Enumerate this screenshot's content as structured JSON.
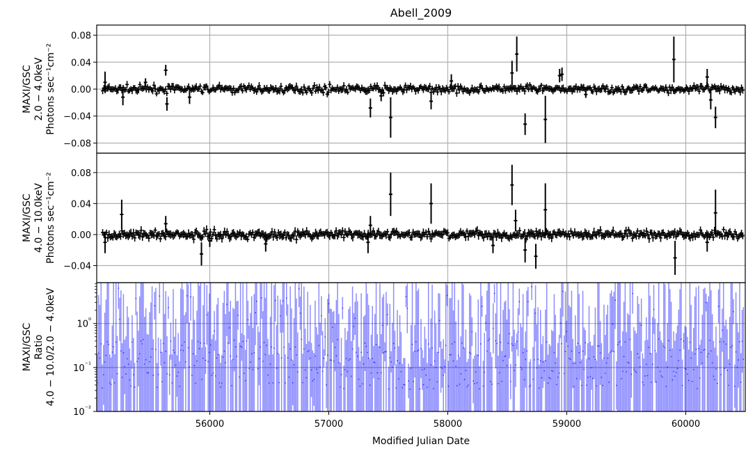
{
  "chart_data": {
    "type": "scatter",
    "title": "Abell_2009",
    "xlabel": "Modified Julian Date",
    "xlim": [
      55050,
      60500
    ],
    "xticks": [
      56000,
      57000,
      58000,
      59000,
      60000
    ],
    "shared_x": true,
    "grid": true,
    "panels": [
      {
        "ylabel_lines": [
          "MAXI/GSC",
          "2.0 − 4.0keV",
          "Photons sec⁻¹cm⁻²"
        ],
        "yscale": "linear",
        "ylim": [
          -0.095,
          0.095
        ],
        "yticks": [
          -0.08,
          -0.04,
          0.0,
          0.04,
          0.08
        ],
        "ytick_labels": [
          "−0.08",
          "−0.04",
          "0.00",
          "0.04",
          "0.08"
        ],
        "color": "#000000",
        "series": [
          {
            "style": "errorbar",
            "points": [
              {
                "x": 55120,
                "y": 0.01,
                "err": 0.016
              },
              {
                "x": 55270,
                "y": -0.012,
                "err": 0.012
              },
              {
                "x": 55460,
                "y": 0.01,
                "err": 0.006
              },
              {
                "x": 55630,
                "y": 0.028,
                "err": 0.008
              },
              {
                "x": 55640,
                "y": -0.022,
                "err": 0.01
              },
              {
                "x": 55830,
                "y": -0.012,
                "err": 0.01
              },
              {
                "x": 57350,
                "y": -0.028,
                "err": 0.014
              },
              {
                "x": 57440,
                "y": -0.01,
                "err": 0.008
              },
              {
                "x": 57520,
                "y": -0.042,
                "err": 0.03
              },
              {
                "x": 57860,
                "y": -0.018,
                "err": 0.012
              },
              {
                "x": 58030,
                "y": 0.012,
                "err": 0.01
              },
              {
                "x": 58540,
                "y": 0.024,
                "err": 0.018
              },
              {
                "x": 58580,
                "y": 0.052,
                "err": 0.026
              },
              {
                "x": 58650,
                "y": -0.052,
                "err": 0.016
              },
              {
                "x": 58820,
                "y": -0.045,
                "err": 0.035
              },
              {
                "x": 58940,
                "y": 0.02,
                "err": 0.01
              },
              {
                "x": 58960,
                "y": 0.022,
                "err": 0.01
              },
              {
                "x": 59160,
                "y": -0.008,
                "err": 0.005
              },
              {
                "x": 59900,
                "y": 0.044,
                "err": 0.034
              },
              {
                "x": 60180,
                "y": 0.018,
                "err": 0.012
              },
              {
                "x": 60210,
                "y": -0.016,
                "err": 0.014
              },
              {
                "x": 60250,
                "y": -0.042,
                "err": 0.016
              }
            ]
          }
        ]
      },
      {
        "ylabel_lines": [
          "MAXI/GSC",
          "4.0 − 10.0keV",
          "Photons sec⁻¹cm⁻²"
        ],
        "yscale": "linear",
        "ylim": [
          -0.062,
          0.105
        ],
        "yticks": [
          -0.04,
          0.0,
          0.04,
          0.08
        ],
        "ytick_labels": [
          "−0.04",
          "0.00",
          "0.04",
          "0.08"
        ],
        "color": "#000000",
        "series": [
          {
            "style": "errorbar",
            "points": [
              {
                "x": 55120,
                "y": -0.01,
                "err": 0.014
              },
              {
                "x": 55260,
                "y": 0.026,
                "err": 0.019
              },
              {
                "x": 55630,
                "y": 0.014,
                "err": 0.01
              },
              {
                "x": 55930,
                "y": -0.025,
                "err": 0.015
              },
              {
                "x": 56000,
                "y": -0.008,
                "err": 0.008
              },
              {
                "x": 56470,
                "y": -0.012,
                "err": 0.01
              },
              {
                "x": 57330,
                "y": -0.01,
                "err": 0.014
              },
              {
                "x": 57350,
                "y": 0.012,
                "err": 0.012
              },
              {
                "x": 57520,
                "y": 0.052,
                "err": 0.028
              },
              {
                "x": 57860,
                "y": 0.04,
                "err": 0.026
              },
              {
                "x": 58380,
                "y": -0.014,
                "err": 0.01
              },
              {
                "x": 58540,
                "y": 0.064,
                "err": 0.026
              },
              {
                "x": 58570,
                "y": 0.018,
                "err": 0.014
              },
              {
                "x": 58650,
                "y": -0.02,
                "err": 0.016
              },
              {
                "x": 58740,
                "y": -0.028,
                "err": 0.016
              },
              {
                "x": 58820,
                "y": 0.032,
                "err": 0.034
              },
              {
                "x": 59910,
                "y": -0.03,
                "err": 0.022
              },
              {
                "x": 60180,
                "y": -0.01,
                "err": 0.012
              },
              {
                "x": 60250,
                "y": 0.028,
                "err": 0.03
              }
            ]
          }
        ]
      },
      {
        "ylabel_lines": [
          "MAXI/GSC",
          "Ratio",
          "4.0 − 10.0/2.0 − 4.0keV"
        ],
        "yscale": "log",
        "ylim": [
          0.01,
          8.5
        ],
        "yticks": [
          0.01,
          0.1,
          1.0
        ],
        "ytick_labels": [
          "10⁻²",
          "10⁻¹",
          "10⁰"
        ],
        "color": "#0000ff",
        "series": [
          {
            "style": "ratio-bars",
            "x_start": 55055,
            "x_end": 60495,
            "n_points": 520,
            "y_range": [
              0.01,
              8.5
            ]
          }
        ]
      }
    ]
  }
}
